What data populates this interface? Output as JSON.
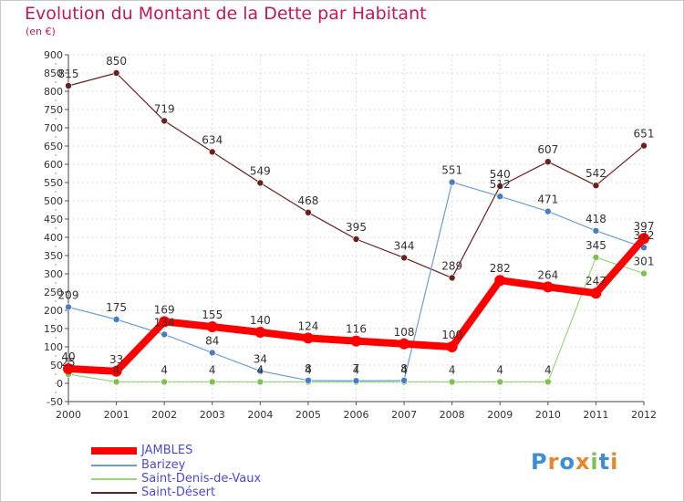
{
  "header": {
    "title": "Evolution du Montant de la Dette par Habitant",
    "unit": "(en €)"
  },
  "logo": {
    "text": "Proxiti"
  },
  "chart_data": {
    "type": "line",
    "x": [
      "2000",
      "2001",
      "2002",
      "2003",
      "2004",
      "2005",
      "2006",
      "2007",
      "2008",
      "2009",
      "2010",
      "2011",
      "2012"
    ],
    "ylim": [
      -50,
      900
    ],
    "yticks": [
      -50,
      0,
      50,
      100,
      150,
      200,
      250,
      300,
      350,
      400,
      450,
      500,
      550,
      600,
      650,
      700,
      750,
      800,
      850,
      900
    ],
    "grid": true,
    "legend_position": "bottom-left",
    "series": [
      {
        "name": "JAMBLES",
        "color": "#ff0000",
        "marker": "#ff0000",
        "values": [
          40,
          33,
          169,
          155,
          140,
          124,
          116,
          108,
          100,
          282,
          264,
          247,
          397
        ],
        "labels": [
          "40",
          "33",
          "169",
          "155",
          "140",
          "124",
          "116",
          "108",
          "100",
          "282",
          "264",
          "247",
          "397"
        ]
      },
      {
        "name": "Barizey",
        "color": "#6a9fd4",
        "marker": "#4a7cc0",
        "values": [
          209,
          175,
          134,
          84,
          34,
          8,
          7,
          8,
          551,
          512,
          471,
          418,
          372
        ],
        "labels": [
          "209",
          "175",
          "134",
          "84",
          "34",
          "8",
          "7",
          "8",
          "551",
          "512",
          "471",
          "418",
          "372"
        ]
      },
      {
        "name": "Saint-Denis-de-Vaux",
        "color": "#9ad680",
        "marker": "#7cc24f",
        "values": [
          25,
          4,
          4,
          4,
          4,
          4,
          4,
          4,
          4,
          4,
          4,
          345,
          301
        ],
        "labels": [
          "25",
          "4",
          "4",
          "4",
          "4",
          "4",
          "4",
          "4",
          "4",
          "4",
          "4",
          "345",
          "301"
        ]
      },
      {
        "name": "Saint-Désert",
        "color": "#6b1f1f",
        "marker": "#6b1f1f",
        "values": [
          815,
          850,
          719,
          634,
          549,
          468,
          395,
          344,
          289,
          540,
          607,
          542,
          651
        ],
        "labels": [
          "815",
          "850",
          "719",
          "634",
          "549",
          "468",
          "395",
          "344",
          "289",
          "540",
          "607",
          "542",
          "651"
        ]
      }
    ]
  }
}
